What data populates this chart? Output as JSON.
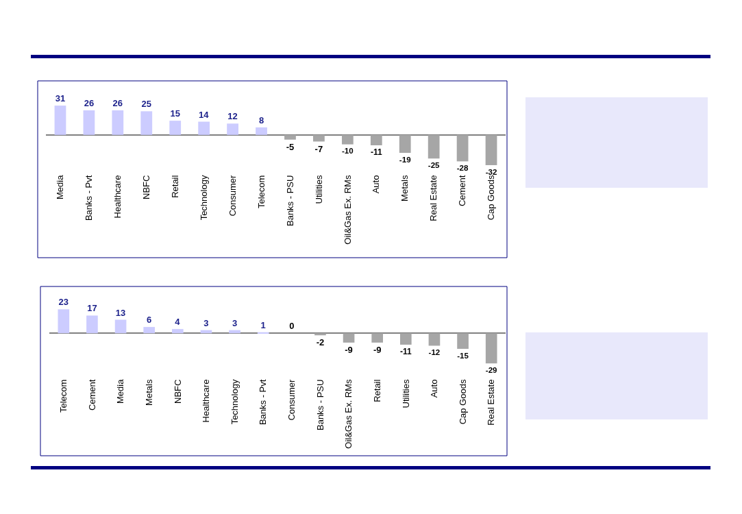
{
  "chart_data": [
    {
      "type": "bar",
      "categories": [
        "Media",
        "Banks - Pvt",
        "Healthcare",
        "NBFC",
        "Retail",
        "Technology",
        "Consumer",
        "Telecom",
        "Banks - PSU",
        "Utilities",
        "Oil&Gas Ex. RMs",
        "Auto",
        "Metals",
        "Real Estate",
        "Cement",
        "Cap Goods"
      ],
      "values": [
        31,
        26,
        26,
        25,
        15,
        14,
        12,
        8,
        -5,
        -7,
        -10,
        -11,
        -19,
        -25,
        -28,
        -32
      ],
      "colors": [
        "#ccccff",
        "#ccccff",
        "#ccccff",
        "#ccccff",
        "#ccccff",
        "#ccccff",
        "#ccccff",
        "#ccccff",
        "#a6a6a6",
        "#a6a6a6",
        "#a6a6a6",
        "#a6a6a6",
        "#a6a6a6",
        "#a6a6a6",
        "#a6a6a6",
        "#a6a6a6"
      ],
      "data_labels": true,
      "tick_labels": "x"
    },
    {
      "type": "bar",
      "categories": [
        "Telecom",
        "Cement",
        "Media",
        "Metals",
        "NBFC",
        "Healthcare",
        "Technology",
        "Banks - Pvt",
        "Consumer",
        "Banks - PSU",
        "Oil&Gas Ex. RMs",
        "Retail",
        "Utilities",
        "Auto",
        "Cap Goods",
        "Real Estate"
      ],
      "values": [
        23,
        17,
        13,
        6,
        4,
        3,
        3,
        1,
        0,
        -2,
        -9,
        -9,
        -11,
        -12,
        -15,
        -29
      ],
      "colors": [
        "#ccccff",
        "#ccccff",
        "#ccccff",
        "#ccccff",
        "#ccccff",
        "#ccccff",
        "#ccccff",
        "#ccccff",
        "#a6a6a6",
        "#a6a6a6",
        "#a6a6a6",
        "#a6a6a6",
        "#a6a6a6",
        "#a6a6a6",
        "#a6a6a6",
        "#a6a6a6"
      ],
      "data_labels": true,
      "tick_labels": "x"
    }
  ]
}
